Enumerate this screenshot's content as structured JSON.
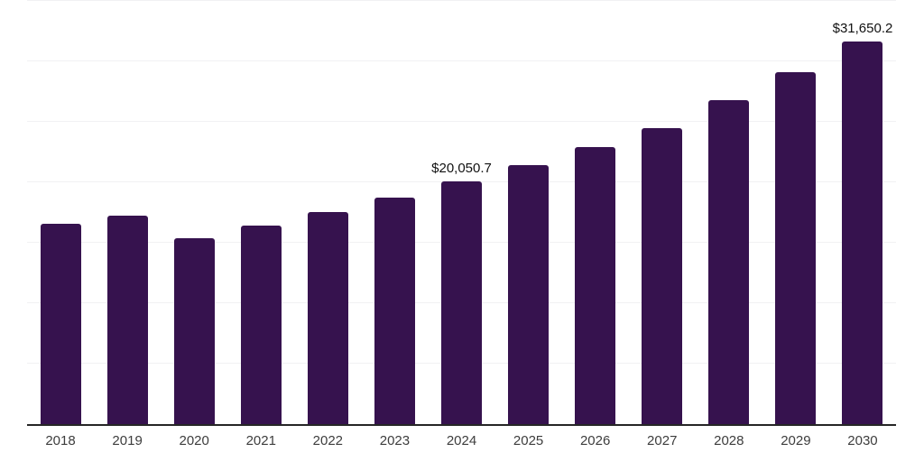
{
  "chart_data": {
    "type": "bar",
    "title": "",
    "xlabel": "",
    "ylabel": "",
    "categories": [
      "2018",
      "2019",
      "2020",
      "2021",
      "2022",
      "2023",
      "2024",
      "2025",
      "2026",
      "2027",
      "2028",
      "2029",
      "2030"
    ],
    "values": [
      16550,
      17250,
      15400,
      16400,
      17560,
      18740,
      20050.7,
      21430,
      22890,
      24470,
      26800,
      29140,
      31650.2
    ],
    "annotations": [
      {
        "category": "2024",
        "text": "$20,050.7"
      },
      {
        "category": "2030",
        "text": "$31,650.2"
      }
    ],
    "ylim": [
      0,
      35000
    ],
    "gridline_step": 5000,
    "grid": "horizontal-only",
    "y_tick_labels": "none",
    "legend": "none",
    "bar_color": "#36124e",
    "axis_line_color": "#262626",
    "gridline_color": "#f1f1f3",
    "x_tick_color": "#3d3d3d",
    "data_label_color": "#111111"
  }
}
